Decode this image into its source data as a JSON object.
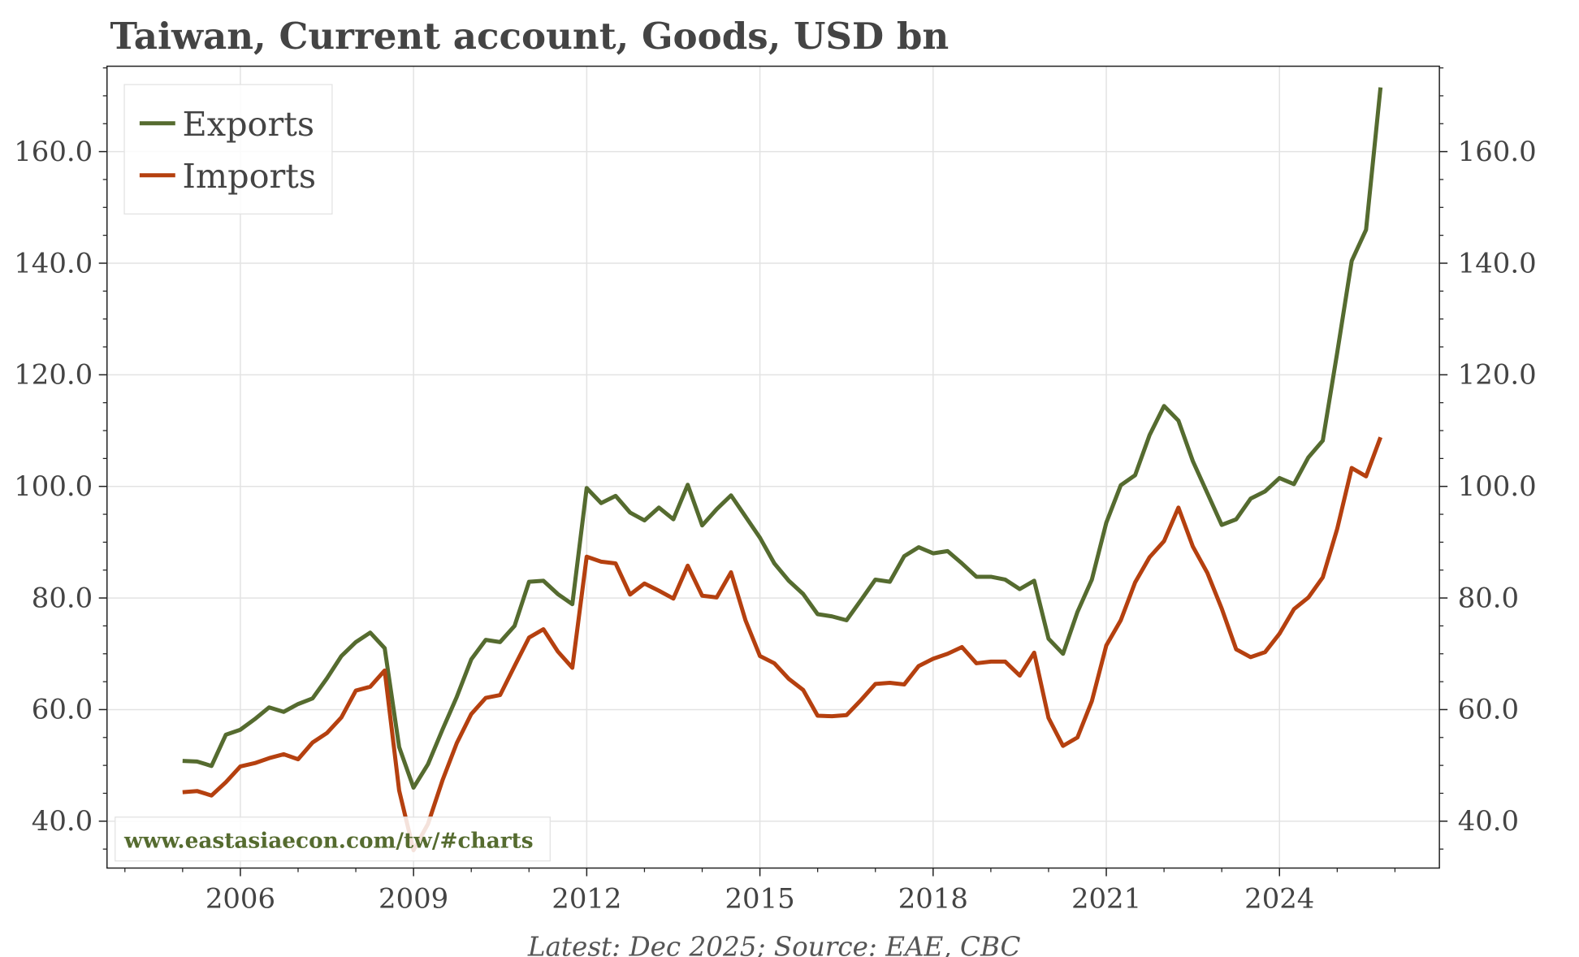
{
  "chart_data": {
    "type": "line",
    "title": "Taiwan, Current account, Goods, USD bn",
    "footer": "Latest: Dec 2025; Source: EAE, CBC",
    "watermark": "www.eastasiaecon.com/tw/#charts",
    "xlabel": "",
    "ylabel": "",
    "x_start": 2005.0,
    "x_step": 0.25,
    "xlim": [
      2003.69,
      2026.77
    ],
    "ylim": [
      31.6,
      175.3
    ],
    "x_ticks": [
      2006,
      2009,
      2012,
      2015,
      2018,
      2021,
      2024
    ],
    "x_tick_labels": [
      "2006",
      "2009",
      "2012",
      "2015",
      "2018",
      "2021",
      "2024"
    ],
    "y_ticks": [
      40,
      60,
      80,
      100,
      120,
      140,
      160
    ],
    "y_tick_labels": [
      "40.0",
      "60.0",
      "80.0",
      "100.0",
      "120.0",
      "140.0",
      "160.0"
    ],
    "grid": true,
    "legend_position": "top-left",
    "series": [
      {
        "name": "Exports",
        "color": "#556b2f",
        "values": [
          50.8,
          50.7,
          49.9,
          55.5,
          56.4,
          58.3,
          60.4,
          59.6,
          61,
          62,
          65.6,
          69.6,
          72.1,
          73.8,
          71,
          53.3,
          46,
          50.2,
          56.4,
          62.3,
          69,
          72.5,
          72.1,
          75,
          82.9,
          83.1,
          80.7,
          78.9,
          99.7,
          97,
          98.3,
          95.3,
          93.9,
          96.2,
          94.1,
          100.3,
          93,
          95.9,
          98.4,
          94.6,
          90.8,
          86.2,
          83.1,
          80.7,
          77.1,
          76.7,
          76,
          79.6,
          83.3,
          82.9,
          87.5,
          89.1,
          88,
          88.4,
          86.2,
          83.8,
          83.8,
          83.3,
          81.6,
          83.1,
          72.7,
          70,
          77.5,
          83.3,
          93.5,
          100.2,
          102,
          109.2,
          114.4,
          111.8,
          104.5,
          98.8,
          93.1,
          94.1,
          97.8,
          99.1,
          101.5,
          100.4,
          105.2,
          108.2,
          124,
          140.4,
          146,
          171.5
        ]
      },
      {
        "name": "Imports",
        "color": "#b5400f",
        "values": [
          45.2,
          45.4,
          44.6,
          47,
          49.8,
          50.4,
          51.3,
          52,
          51.1,
          54.1,
          55.8,
          58.6,
          63.4,
          64.1,
          67,
          45.5,
          34.8,
          39.5,
          47.3,
          54,
          59.2,
          62.1,
          62.6,
          67.8,
          72.9,
          74.4,
          70.4,
          67.5,
          87.4,
          86.5,
          86.2,
          80.6,
          82.6,
          81.3,
          79.9,
          85.8,
          80.4,
          80.1,
          84.6,
          76,
          69.6,
          68.3,
          65.5,
          63.5,
          58.9,
          58.8,
          59,
          61.7,
          64.6,
          64.8,
          64.5,
          67.8,
          69.1,
          70,
          71.2,
          68.3,
          68.6,
          68.6,
          66.1,
          70.2,
          58.5,
          53.5,
          55,
          61.5,
          71.5,
          76,
          82.8,
          87.3,
          90.2,
          96.2,
          89.2,
          84.5,
          78.1,
          70.8,
          69.4,
          70.3,
          73.6,
          78,
          80.1,
          83.7,
          92.4,
          103.3,
          101.8,
          108.8
        ]
      }
    ]
  }
}
